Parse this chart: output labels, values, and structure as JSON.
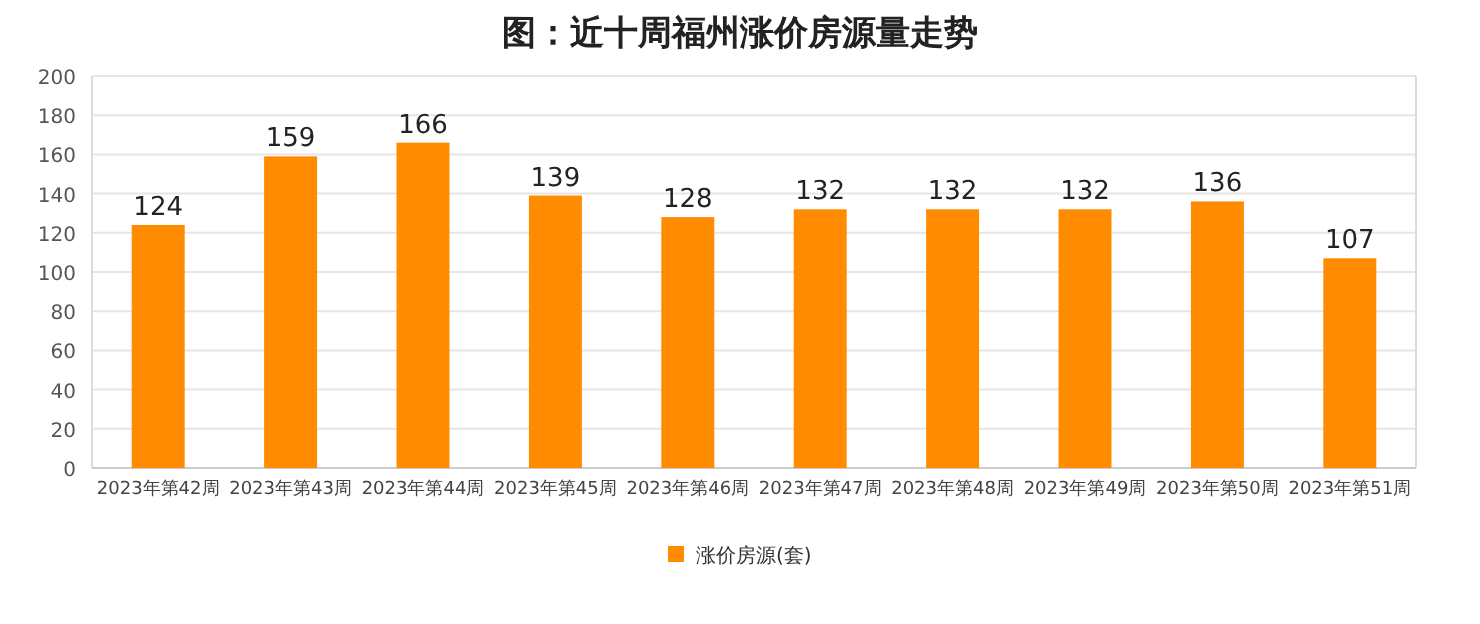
{
  "chart_data": {
    "type": "bar",
    "title": "图：近十周福州涨价房源量走势",
    "categories": [
      "2023年第42周",
      "2023年第43周",
      "2023年第44周",
      "2023年第45周",
      "2023年第46周",
      "2023年第47周",
      "2023年第48周",
      "2023年第49周",
      "2023年第50周",
      "2023年第51周"
    ],
    "series": [
      {
        "name": "涨价房源(套)",
        "color": "#ff8c00",
        "values": [
          124,
          159,
          166,
          139,
          128,
          132,
          132,
          132,
          136,
          107
        ]
      }
    ],
    "ylim": [
      0,
      200
    ],
    "yticks": [
      0,
      20,
      40,
      60,
      80,
      100,
      120,
      140,
      160,
      180,
      200
    ],
    "grid": "y",
    "legend": "bottom",
    "data_labels": true
  }
}
